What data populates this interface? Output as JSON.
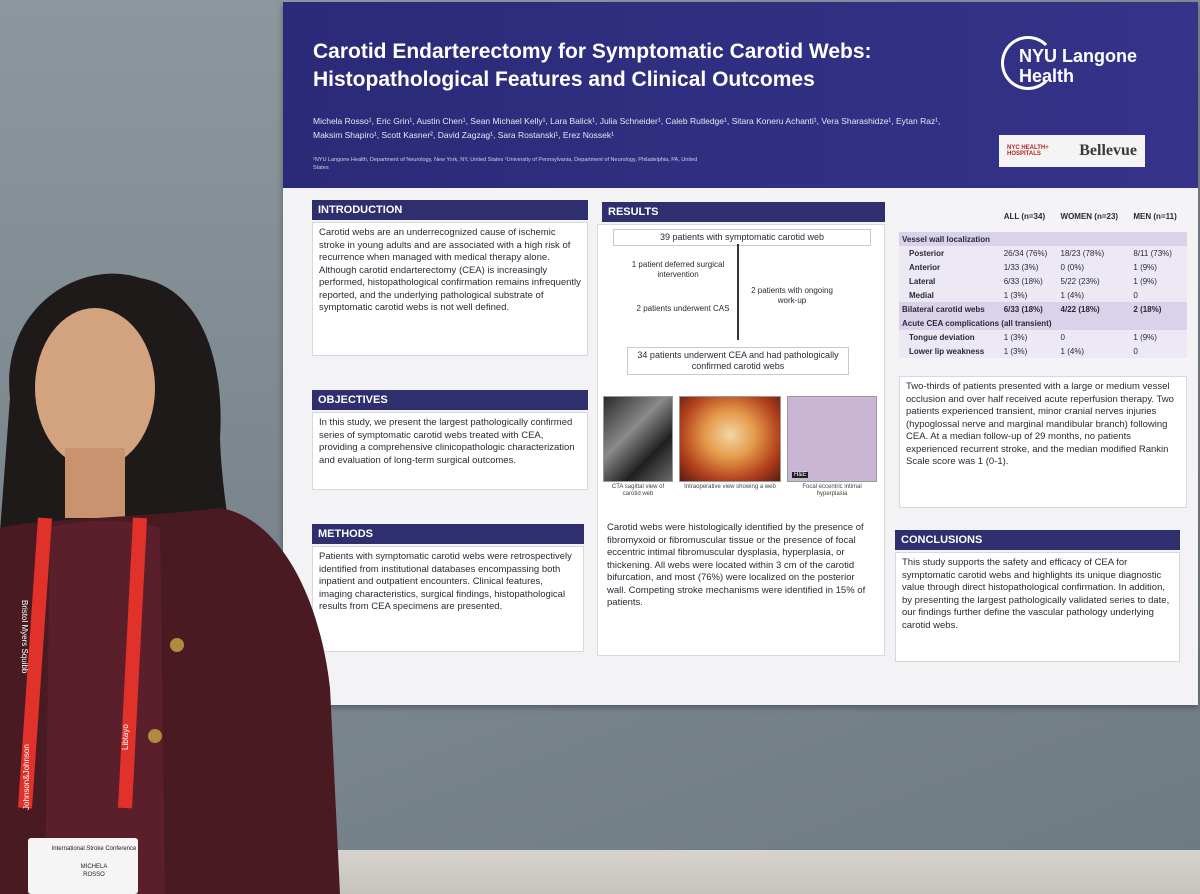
{
  "poster": {
    "title": "Carotid Endarterectomy for Symptomatic Carotid Webs: Histopathological Features and Clinical Outcomes",
    "authors": "Michela Rosso¹, Eric Grin¹, Austin Chen¹, Sean Michael Kelly¹, Lara Balick¹, Julia Schneider¹, Caleb Rutledge¹, Sitara Koneru Achanti¹, Vera Sharashidze¹, Eytan Raz¹, Maksim Shapiro¹, Scott Kasner², David Zagzag¹, Sara Rostanski¹, Erez Nossek¹",
    "affiliations": "¹NYU Langone Health, Department of Neurology, New York, NY, United States ²University of Pennsylvania, Department of Neurology, Philadelphia, PA, United States",
    "logo_text": "NYU Langone Health",
    "sponsor_logo_text": "NYC HEALTH+ HOSPITALS",
    "sponsor_logo_name": "Bellevue",
    "colors": {
      "header_bg": "#2b2a78",
      "section_head_bg": "#2f2e6e",
      "poster_bg": "#f3f2f5"
    },
    "introduction": {
      "heading": "INTRODUCTION",
      "text": "Carotid webs are an underrecognized cause of ischemic stroke in young adults and are associated with a high risk of recurrence when managed with medical therapy alone. Although carotid endarterectomy (CEA) is increasingly performed, histopathological confirmation remains infrequently reported, and the underlying pathological substrate of symptomatic carotid webs is not well defined."
    },
    "objectives": {
      "heading": "OBJECTIVES",
      "text": "In this study, we present the largest pathologically confirmed series of symptomatic carotid webs treated with CEA, providing a comprehensive clinicopathologic characterization and evaluation of long-term surgical outcomes."
    },
    "methods": {
      "heading": "METHODS",
      "text": "Patients with symptomatic carotid webs were retrospectively identified from institutional databases encompassing both inpatient and outpatient encounters. Clinical features, imaging characteristics, surgical findings, histopathological results from CEA specimens are presented."
    },
    "results": {
      "heading": "RESULTS",
      "flow_top": "39 patients with symptomatic carotid web",
      "flow_left_1": "1 patient deferred surgical intervention",
      "flow_right": "2 patients with ongoing work-up",
      "flow_left_2": "2 patients underwent CAS",
      "flow_bottom": "34 patients underwent CEA and had pathologically confirmed carotid webs",
      "img_caption_1": "CTA sagittal view of carotid web",
      "img_caption_2": "Intraoperative view showing a web",
      "img_caption_3": "Focal eccentric intimal hyperplasia",
      "img_label_3": "H&E",
      "text": "Carotid webs were histologically identified by the presence of fibromyxoid or fibromuscular tissue or the presence of focal eccentric intimal fibromuscular dysplasia, hyperplasia, or thickening. All webs were located within 3 cm of the carotid bifurcation, and most (76%) were localized on the posterior wall. Competing stroke mechanisms were identified in 15% of patients."
    },
    "table": {
      "col_headers": [
        "",
        "ALL (n=34)",
        "WOMEN (n=23)",
        "MEN (n=11)"
      ],
      "groups": [
        {
          "label": "Vessel wall localization",
          "rows": [
            [
              "Posterior",
              "26/34 (76%)",
              "18/23 (78%)",
              "8/11 (73%)"
            ],
            [
              "Anterior",
              "1/33 (3%)",
              "0 (0%)",
              "1 (9%)"
            ],
            [
              "Lateral",
              "6/33 (18%)",
              "5/22 (23%)",
              "1 (9%)"
            ],
            [
              "Medial",
              "1 (3%)",
              "1 (4%)",
              "0"
            ]
          ]
        },
        {
          "label": "Bilateral carotid webs",
          "value_row": [
            "6/33 (18%)",
            "4/22 (18%)",
            "2 (18%)"
          ],
          "rows": []
        },
        {
          "label": "Acute CEA complications (all transient)",
          "rows": [
            [
              "Tongue deviation",
              "1 (3%)",
              "0",
              "1 (9%)"
            ],
            [
              "Lower lip weakness",
              "1 (3%)",
              "1 (4%)",
              "0"
            ]
          ]
        }
      ],
      "summary": "Two-thirds of patients presented with a large or medium vessel occlusion and over half received acute reperfusion therapy. Two patients experienced transient, minor cranial nerves injuries (hypoglossal nerve and marginal mandibular branch) following CEA. At a median follow-up of 29 months, no patients experienced recurrent stroke, and the median modified Rankin Scale score was 1 (0-1)."
    },
    "conclusions": {
      "heading": "CONCLUSIONS",
      "text": "This study supports the safety and efficacy of CEA for symptomatic carotid webs and highlights its unique diagnostic value through direct histopathological confirmation. In addition, by presenting the largest pathologically validated series to date, our findings further define the vascular pathology underlying carotid webs."
    }
  },
  "badge": {
    "event": "International Stroke Conference",
    "name_line_1": "MICHELA",
    "name_line_2": "ROSSO",
    "lanyard_text_1": "Bristol Myers Squibb",
    "lanyard_text_2": "Johnson&Johnson",
    "lanyard_text_3": "Libtayo"
  }
}
